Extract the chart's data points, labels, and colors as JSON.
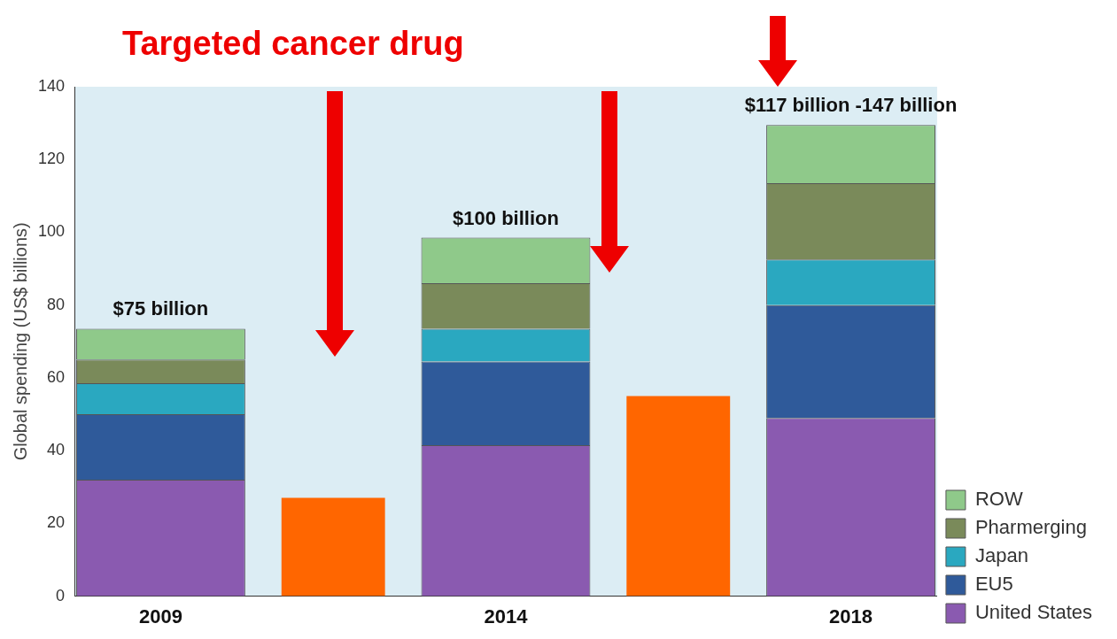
{
  "chart_data": {
    "type": "bar",
    "stacked": true,
    "ylabel": "Global spending (US$ billions)",
    "categories": [
      "2009",
      null,
      "2014",
      null,
      "2018"
    ],
    "ylim": [
      0,
      140
    ],
    "yticks": [
      0,
      20,
      40,
      60,
      80,
      100,
      120,
      140
    ],
    "grid": false,
    "legend": "bottom right",
    "annotations": [
      "Targeted cancer drug"
    ],
    "totals": [
      "$75 billion",
      null,
      "$100 billion",
      null,
      "$117 billion -147 billion"
    ],
    "series": [
      {
        "name": "United States",
        "color": "#8a5ab0",
        "values": [
          32,
          null,
          41.5,
          null,
          49
        ]
      },
      {
        "name": "EU5",
        "color": "#2f5a9a",
        "values": [
          18,
          null,
          23,
          null,
          31
        ]
      },
      {
        "name": "Japan",
        "color": "#2aa8c0",
        "values": [
          8.5,
          null,
          9,
          null,
          12.5
        ]
      },
      {
        "name": "Pharmerging",
        "color": "#7a8a5a",
        "values": [
          6.5,
          null,
          12.5,
          null,
          21
        ]
      },
      {
        "name": "ROW",
        "color": "#8fc98a",
        "values": [
          8.5,
          null,
          12.5,
          null,
          16
        ]
      },
      {
        "color": "#ff6600",
        "values": [
          null,
          27,
          null,
          55,
          null
        ]
      }
    ]
  }
}
